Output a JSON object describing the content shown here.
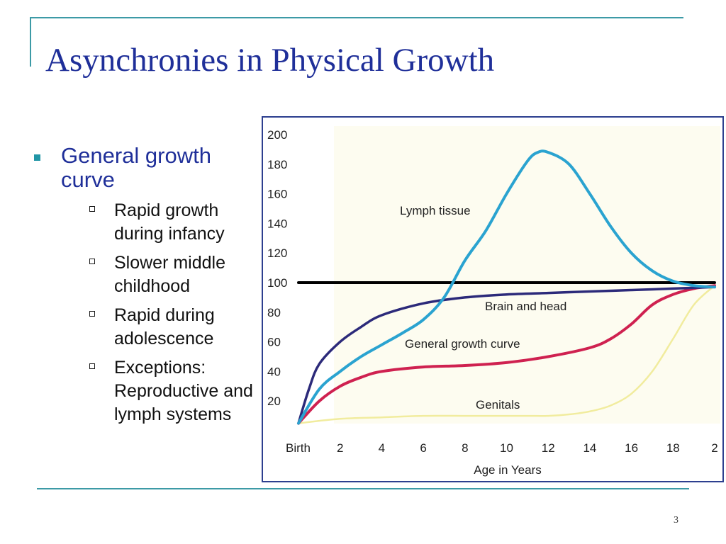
{
  "slide": {
    "title": "Asynchronies in Physical Growth",
    "page_number": "3"
  },
  "bullets": {
    "main": "General growth curve",
    "subs": [
      "Rapid growth during infancy",
      "Slower middle childhood",
      "Rapid during adolescence",
      "Exceptions: Reproductive and lymph systems"
    ]
  },
  "chart_data": {
    "type": "line",
    "xlabel": "Age in Years",
    "ylabel": "",
    "x_tick_labels": [
      "Birth",
      "2",
      "4",
      "6",
      "8",
      "10",
      "12",
      "14",
      "16",
      "18",
      "2"
    ],
    "y_ticks": [
      20,
      40,
      60,
      80,
      100,
      120,
      140,
      160,
      180,
      200
    ],
    "xlim": [
      0,
      20
    ],
    "ylim": [
      0,
      200
    ],
    "grid": false,
    "series": [
      {
        "name": "Lymph tissue",
        "color": "#2aa3d0",
        "x": [
          0,
          1,
          2,
          3,
          4,
          5,
          6,
          7,
          8,
          9,
          10,
          11,
          11.5,
          12,
          13,
          14,
          15,
          16,
          17,
          18,
          19,
          20
        ],
        "y": [
          5,
          28,
          40,
          50,
          58,
          66,
          75,
          90,
          115,
          135,
          160,
          182,
          188,
          188,
          180,
          160,
          138,
          120,
          108,
          101,
          98,
          97
        ]
      },
      {
        "name": "Brain and head",
        "color": "#2c2a7a",
        "x": [
          0,
          0.5,
          1,
          2,
          3,
          4,
          6,
          8,
          10,
          12,
          14,
          16,
          18,
          20
        ],
        "y": [
          5,
          28,
          45,
          60,
          70,
          78,
          86,
          90,
          92,
          93,
          94,
          95,
          96,
          97
        ]
      },
      {
        "name": "General growth curve",
        "color": "#cf2150",
        "x": [
          0,
          1,
          2,
          3,
          4,
          6,
          8,
          10,
          12,
          14,
          15,
          16,
          17,
          18,
          19,
          20
        ],
        "y": [
          5,
          20,
          30,
          36,
          40,
          43,
          44,
          46,
          50,
          56,
          62,
          72,
          85,
          92,
          96,
          98
        ]
      },
      {
        "name": "Genitals",
        "color": "#f1ec9e",
        "x": [
          0,
          2,
          4,
          6,
          8,
          10,
          11,
          12,
          13,
          14,
          15,
          16,
          17,
          18,
          19,
          20
        ],
        "y": [
          5,
          8,
          9,
          10,
          10,
          10,
          10,
          10,
          11,
          13,
          17,
          25,
          40,
          62,
          85,
          98
        ]
      },
      {
        "name": "",
        "color": "#000000",
        "x": [
          0,
          20
        ],
        "y": [
          100,
          100
        ]
      }
    ]
  }
}
